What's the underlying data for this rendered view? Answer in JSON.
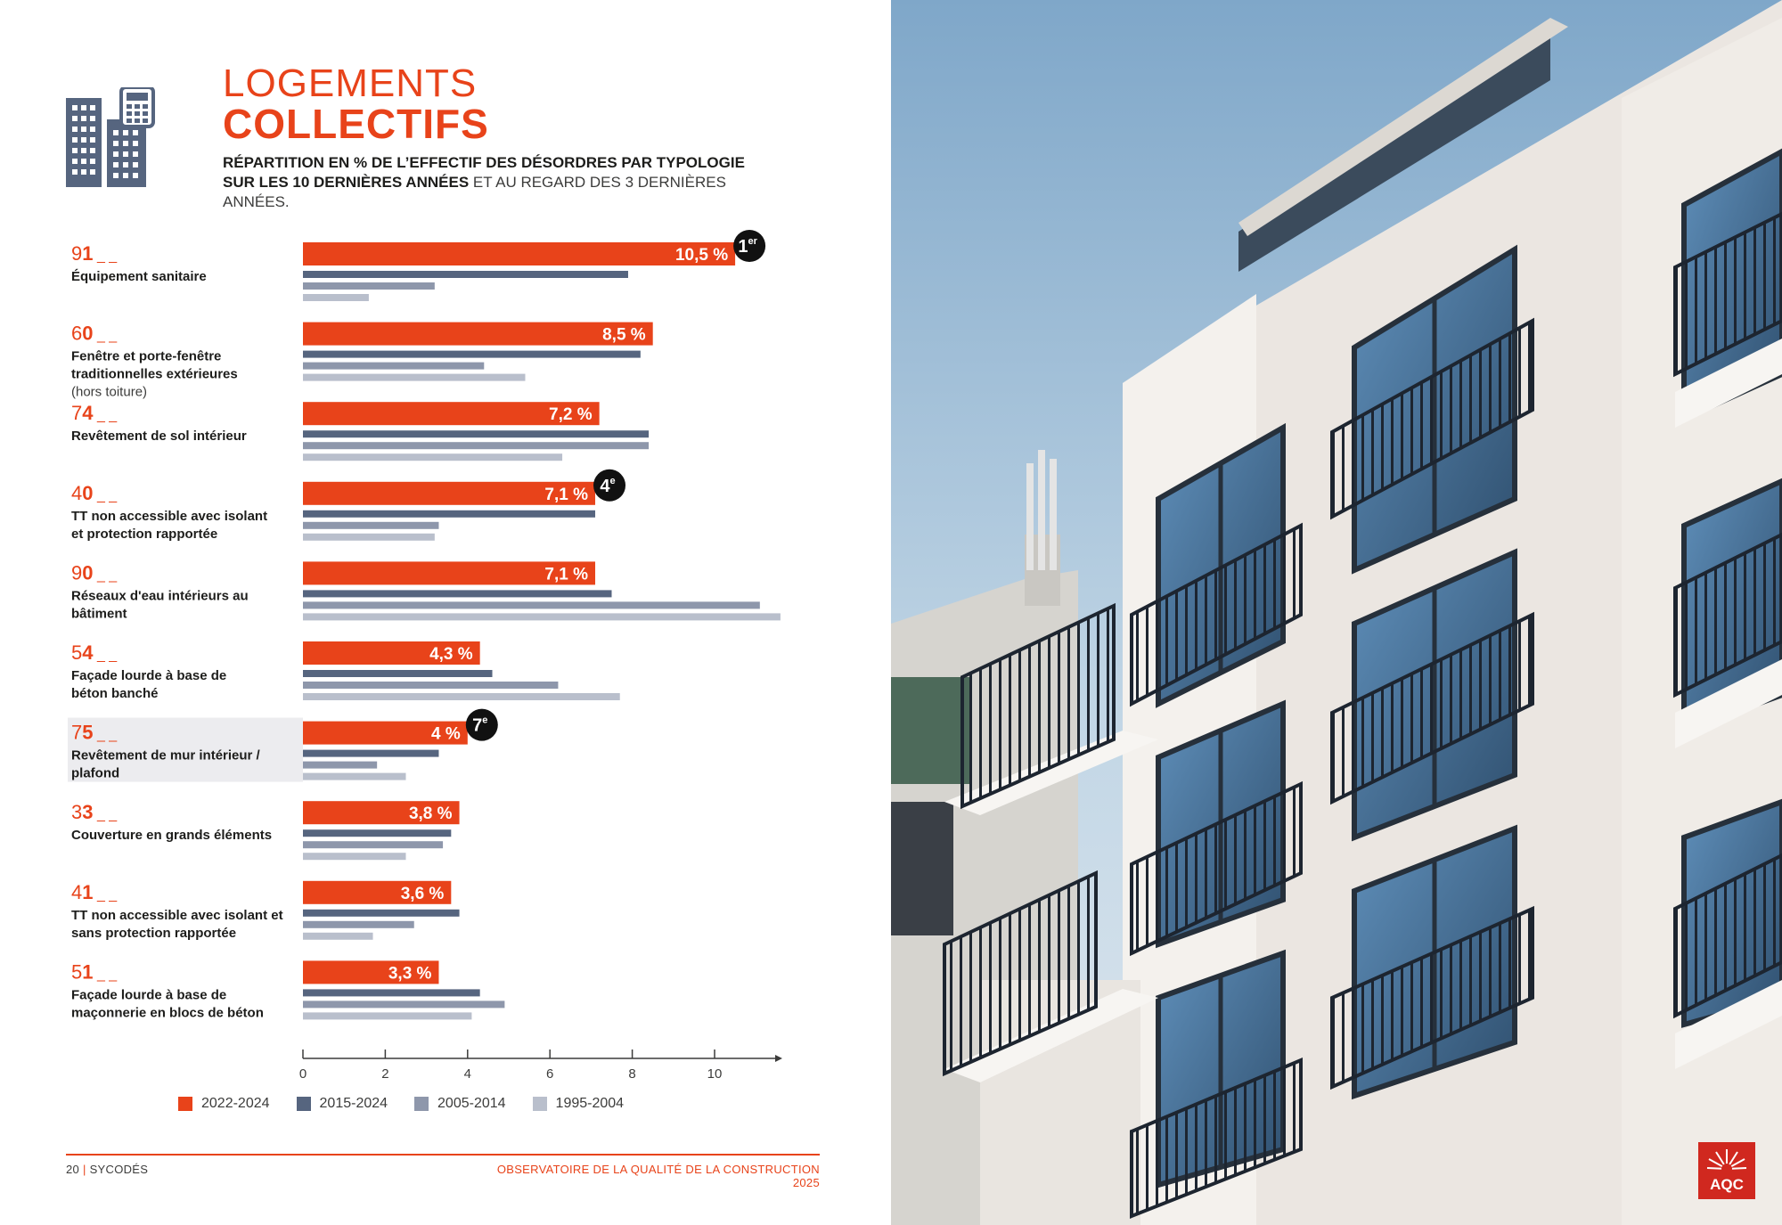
{
  "header": {
    "title_line1": "LOGEMENTS",
    "title_line2": "COLLECTIFS",
    "subtitle_bold": "RÉPARTITION EN % DE L’EFFECTIF DES DÉSORDRES PAR TYPOLOGIE SUR LES 10 DERNIÈRES ANNÉES",
    "subtitle_light": "ET AU REGARD DES 3 DERNIÈRES ANNÉES."
  },
  "colors": {
    "accent": "#e8431a",
    "s2015": "#56657f",
    "s2005": "#8e97ab",
    "s1995": "#b9bfcc",
    "highlight_bg": "#ececef"
  },
  "chart_data": {
    "type": "bar",
    "orientation": "horizontal",
    "xlim": [
      0,
      11.5
    ],
    "xticks": [
      "0",
      "2",
      "4",
      "6",
      "8",
      "10"
    ],
    "series": [
      {
        "name": "2022-2024",
        "color": "#e8431a",
        "values": [
          10.5,
          8.5,
          7.2,
          7.1,
          7.1,
          4.3,
          4.0,
          3.8,
          3.6,
          3.3
        ]
      },
      {
        "name": "2015-2024",
        "color": "#56657f",
        "values": [
          7.9,
          8.2,
          8.4,
          7.1,
          7.5,
          4.6,
          3.3,
          3.6,
          3.8,
          4.3
        ]
      },
      {
        "name": "2005-2014",
        "color": "#8e97ab",
        "values": [
          3.2,
          4.4,
          8.4,
          3.3,
          11.1,
          6.2,
          1.8,
          3.4,
          2.7,
          4.9
        ]
      },
      {
        "name": "1995-2004",
        "color": "#b9bfcc",
        "values": [
          1.6,
          5.4,
          6.3,
          3.2,
          11.6,
          7.7,
          2.5,
          2.5,
          1.7,
          4.1
        ]
      }
    ],
    "value_labels": [
      "10,5 %",
      "8,5 %",
      "7,2 %",
      "7,1 %",
      "7,1 %",
      "4,3 %",
      "4 %",
      "3,8 %",
      "3,6 %",
      "3,3 %"
    ],
    "categories": [
      {
        "code_prefix": "9",
        "code_bold": "1",
        "label_lines": [
          "Équipement sanitaire"
        ],
        "note": "",
        "rank_badge": [
          "1",
          "er"
        ],
        "highlight": false
      },
      {
        "code_prefix": "6",
        "code_bold": "0",
        "label_lines": [
          "Fenêtre et porte-fenêtre",
          "traditionnelles extérieures"
        ],
        "note": "(hors toiture)",
        "rank_badge": null,
        "highlight": false
      },
      {
        "code_prefix": "7",
        "code_bold": "4",
        "label_lines": [
          "Revêtement de sol intérieur"
        ],
        "note": "",
        "rank_badge": null,
        "highlight": false
      },
      {
        "code_prefix": "4",
        "code_bold": "0",
        "label_lines": [
          "TT non accessible avec isolant",
          "et protection rapportée"
        ],
        "note": "",
        "rank_badge": [
          "4",
          "e"
        ],
        "highlight": false
      },
      {
        "code_prefix": "9",
        "code_bold": "0",
        "label_lines": [
          "Réseaux d'eau intérieurs au",
          "bâtiment"
        ],
        "note": "",
        "rank_badge": null,
        "highlight": false
      },
      {
        "code_prefix": "5",
        "code_bold": "4",
        "label_lines": [
          "Façade lourde à base de",
          "béton banché"
        ],
        "note": "",
        "rank_badge": null,
        "highlight": false
      },
      {
        "code_prefix": "7",
        "code_bold": "5",
        "label_lines": [
          "Revêtement de mur intérieur /",
          "plafond"
        ],
        "note": "",
        "rank_badge": [
          "7",
          "e"
        ],
        "highlight": true
      },
      {
        "code_prefix": "3",
        "code_bold": "3",
        "label_lines": [
          "Couverture en grands éléments"
        ],
        "note": "",
        "rank_badge": null,
        "highlight": false
      },
      {
        "code_prefix": "4",
        "code_bold": "1",
        "label_lines": [
          "TT non accessible avec isolant et",
          "sans protection rapportée"
        ],
        "note": "",
        "rank_badge": null,
        "highlight": false
      },
      {
        "code_prefix": "5",
        "code_bold": "1",
        "label_lines": [
          "Façade lourde à base de",
          "maçonnerie en blocs de béton"
        ],
        "note": "",
        "rank_badge": null,
        "highlight": false
      }
    ],
    "code_suffix": "_ _"
  },
  "legend": [
    {
      "label": "2022-2024",
      "color": "#e8431a"
    },
    {
      "label": "2015-2024",
      "color": "#56657f"
    },
    {
      "label": "2005-2014",
      "color": "#8e97ab"
    },
    {
      "label": "1995-2004",
      "color": "#b9bfcc"
    }
  ],
  "footer": {
    "page_number": "20",
    "section": "SYCODÉS",
    "publication": "OBSERVATOIRE DE LA QUALITÉ DE LA CONSTRUCTION 2025"
  },
  "logo": {
    "text": "AQC"
  },
  "icons": {
    "header": "buildings-calculator-icon",
    "logo": "aqc-sunburst-icon"
  }
}
